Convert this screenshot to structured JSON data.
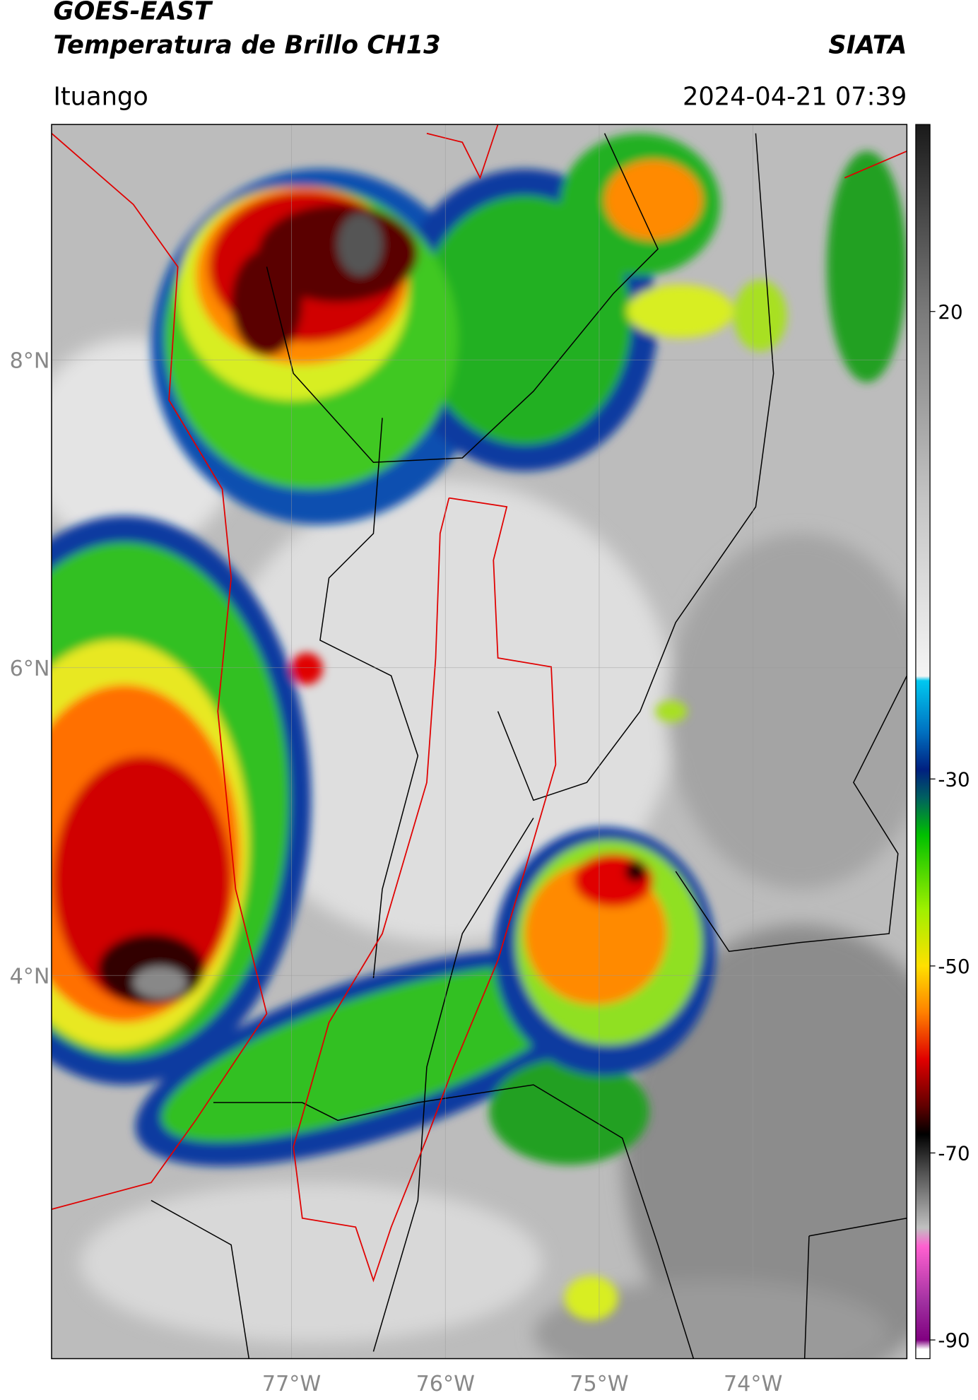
{
  "header": {
    "title": "GOES-EAST",
    "subtitle": "Temperatura de Brillo CH13",
    "source": "SIATA",
    "location": "Ituango",
    "datetime": "2024-04-21 07:39"
  },
  "map": {
    "xlim": [
      -78.56,
      -73
    ],
    "ylim": [
      1.51,
      9.53
    ],
    "xticks": [
      {
        "value": -77,
        "label": "77°W"
      },
      {
        "value": -76,
        "label": "76°W"
      },
      {
        "value": -75,
        "label": "75°W"
      },
      {
        "value": -74,
        "label": "74°W"
      }
    ],
    "yticks": [
      {
        "value": 8,
        "label": "8°N"
      },
      {
        "value": 6,
        "label": "6°N"
      },
      {
        "value": 4,
        "label": "4°N"
      }
    ]
  },
  "colorbar": {
    "lim": [
      -92,
      40
    ],
    "ticks": [
      20,
      -30,
      -50,
      -70,
      -90
    ],
    "colormap": [
      {
        "value": 40,
        "color": "#1a1a1a"
      },
      {
        "value": 20,
        "color": "#7a7a7a"
      },
      {
        "value": 0,
        "color": "#c4c4c4"
      },
      {
        "value": -19,
        "color": "#f5f5f5"
      },
      {
        "value": -19.5,
        "color": "#00c8f0"
      },
      {
        "value": -25,
        "color": "#0070c0"
      },
      {
        "value": -29,
        "color": "#002080"
      },
      {
        "value": -32,
        "color": "#006060"
      },
      {
        "value": -36,
        "color": "#00c000"
      },
      {
        "value": -44,
        "color": "#a0f000"
      },
      {
        "value": -50,
        "color": "#ffe000"
      },
      {
        "value": -55,
        "color": "#ff8000"
      },
      {
        "value": -60,
        "color": "#e00000"
      },
      {
        "value": -65,
        "color": "#600000"
      },
      {
        "value": -68,
        "color": "#000000"
      },
      {
        "value": -72,
        "color": "#505050"
      },
      {
        "value": -78,
        "color": "#c0c0c0"
      },
      {
        "value": -80,
        "color": "#ff60d0"
      },
      {
        "value": -86,
        "color": "#a030a0"
      },
      {
        "value": -90,
        "color": "#800080"
      },
      {
        "value": -91,
        "color": "#ffffff"
      },
      {
        "value": -92,
        "color": "#ffffff"
      }
    ]
  }
}
